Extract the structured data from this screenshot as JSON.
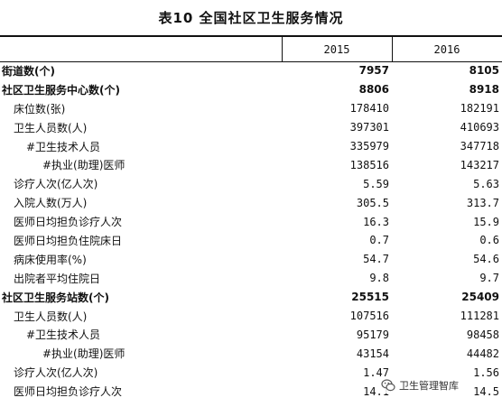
{
  "title": "表10 全国社区卫生服务情况",
  "years": [
    "2015",
    "2016"
  ],
  "rows": [
    {
      "label": "街道数(个)",
      "level": 0,
      "bold": true,
      "v2015": "7957",
      "v2016": "8105"
    },
    {
      "label": "社区卫生服务中心数(个)",
      "level": 0,
      "bold": true,
      "v2015": "8806",
      "v2016": "8918"
    },
    {
      "label": "床位数(张)",
      "level": 1,
      "bold": false,
      "v2015": "178410",
      "v2016": "182191"
    },
    {
      "label": "卫生人员数(人)",
      "level": 1,
      "bold": false,
      "v2015": "397301",
      "v2016": "410693"
    },
    {
      "label": "#卫生技术人员",
      "level": 2,
      "bold": false,
      "v2015": "335979",
      "v2016": "347718"
    },
    {
      "label": "#执业(助理)医师",
      "level": 3,
      "bold": false,
      "v2015": "138516",
      "v2016": "143217"
    },
    {
      "label": "诊疗人次(亿人次)",
      "level": 1,
      "bold": false,
      "v2015": "5.59",
      "v2016": "5.63"
    },
    {
      "label": "入院人数(万人)",
      "level": 1,
      "bold": false,
      "v2015": "305.5",
      "v2016": "313.7"
    },
    {
      "label": "医师日均担负诊疗人次",
      "level": 1,
      "bold": false,
      "v2015": "16.3",
      "v2016": "15.9"
    },
    {
      "label": "医师日均担负住院床日",
      "level": 1,
      "bold": false,
      "v2015": "0.7",
      "v2016": "0.6"
    },
    {
      "label": "病床使用率(%)",
      "level": 1,
      "bold": false,
      "v2015": "54.7",
      "v2016": "54.6"
    },
    {
      "label": "出院者平均住院日",
      "level": 1,
      "bold": false,
      "v2015": "9.8",
      "v2016": "9.7"
    },
    {
      "label": "社区卫生服务站数(个)",
      "level": 0,
      "bold": true,
      "v2015": "25515",
      "v2016": "25409"
    },
    {
      "label": "卫生人员数(人)",
      "level": 1,
      "bold": false,
      "v2015": "107516",
      "v2016": "111281"
    },
    {
      "label": "#卫生技术人员",
      "level": 2,
      "bold": false,
      "v2015": "95179",
      "v2016": "98458"
    },
    {
      "label": "#执业(助理)医师",
      "level": 3,
      "bold": false,
      "v2015": "43154",
      "v2016": "44482"
    },
    {
      "label": "诊疗人次(亿人次)",
      "level": 1,
      "bold": false,
      "v2015": "1.47",
      "v2016": "1.56"
    },
    {
      "label": "医师日均担负诊疗人次",
      "level": 1,
      "bold": false,
      "v2015": "14.1",
      "v2016": "14.5"
    }
  ],
  "watermark": {
    "text": "卫生管理智库",
    "icon": "wechat-logo-icon"
  }
}
